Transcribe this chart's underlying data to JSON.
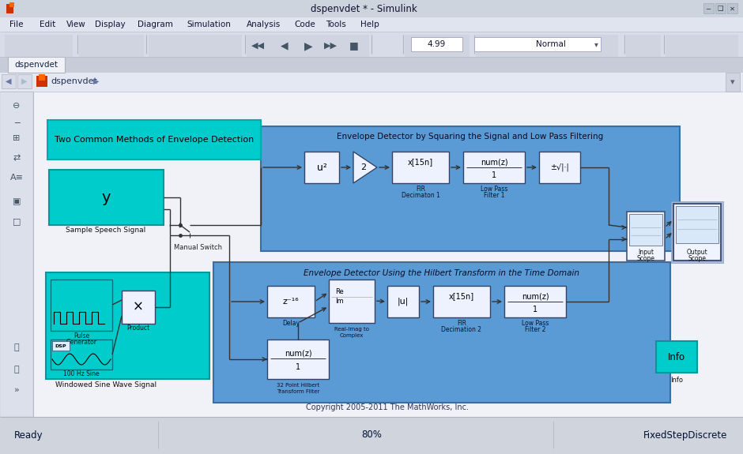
{
  "title_bar": "dspenvdet * - Simulink",
  "menu_items": [
    "File",
    "Edit",
    "View",
    "Display",
    "Diagram",
    "Simulation",
    "Analysis",
    "Code",
    "Tools",
    "Help"
  ],
  "breadcrumb": "dspenvdet",
  "status_left": "Ready",
  "status_center": "80%",
  "status_right": "FixedStepDiscrete",
  "titlebar_bg": "#d6dde8",
  "menubar_bg": "#e8eaf0",
  "toolbar_bg": "#dce0ea",
  "tab_bg": "#e8eaf0",
  "canvas_bg": "#f0f2f8",
  "sidebar_bg": "#e0e4ec",
  "pathbar_bg": "#e4e8f2",
  "teal": "#00c8c8",
  "teal_dark": "#009999",
  "blue_group": "#5b9bd5",
  "blue_group_border": "#3a6ea0",
  "white_block": "#f0f4ff",
  "white_block_border": "#445577",
  "statusbar_bg": "#d0d4dc",
  "copyright_text": "Copyright 2005-2011 The MathWorks, Inc.",
  "top_group_title": "Envelope Detector by Squaring the Signal and Low Pass Filtering",
  "bottom_group_title": "Envelope Detector Using the Hilbert Transform in the Time Domain",
  "annotation_text": "Two Common Methods of Envelope Detection"
}
